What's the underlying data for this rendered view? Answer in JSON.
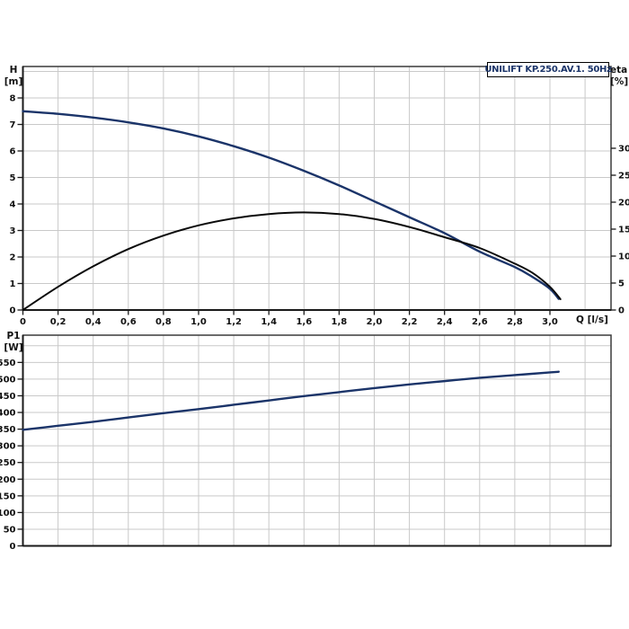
{
  "colors": {
    "background": "#ffffff",
    "grid": "#c9c9c9",
    "frame": "#3a3a3a",
    "tick": "#1a1a1a",
    "curve_navy": "#1b3469",
    "curve_black": "#0a0a0a",
    "title_text": "#1b3469"
  },
  "chart_data": [
    {
      "type": "line",
      "name": "qh-eta-chart",
      "title": "UNILIFT KP.250.AV.1. 50Hz",
      "xlabel": "Q [l/s]",
      "xlim": [
        0,
        3.35
      ],
      "grid": true,
      "x_grid": [
        0.2,
        0.4,
        0.6,
        0.8,
        1.0,
        1.2,
        1.4,
        1.6,
        1.8,
        2.0,
        2.2,
        2.4,
        2.6,
        2.8,
        3.0,
        3.2
      ],
      "x_ticks": {
        "values": [
          0,
          0.2,
          0.4,
          0.6,
          0.8,
          1.0,
          1.2,
          1.4,
          1.6,
          1.8,
          2.0,
          2.2,
          2.4,
          2.6,
          2.8,
          3.0
        ],
        "labels": [
          "0",
          "0,2",
          "0,4",
          "0,6",
          "0,8",
          "1,0",
          "1,2",
          "1,4",
          "1,6",
          "1,8",
          "2,0",
          "2,2",
          "2,4",
          "2,6",
          "2,8",
          "3,0"
        ]
      },
      "left_axis": {
        "name": "H",
        "unit": "[m]",
        "lim": [
          0,
          9.18
        ],
        "ticks": [
          0,
          1,
          2,
          3,
          4,
          5,
          6,
          7,
          8
        ],
        "tick_labels": [
          "0",
          "1",
          "2",
          "3",
          "4",
          "5",
          "6",
          "7",
          "8"
        ],
        "grid_values": [
          1,
          2,
          3,
          4,
          5,
          6,
          7,
          8,
          9
        ]
      },
      "right_axis": {
        "name": "eta",
        "unit": "[%]",
        "lim": [
          0,
          45.2
        ],
        "ticks": [
          0,
          5,
          10,
          15,
          20,
          25,
          30
        ],
        "tick_labels": [
          "0",
          "5",
          "10",
          "15",
          "20",
          "25",
          "30"
        ]
      },
      "series": [
        {
          "name": "H",
          "axis": "left",
          "color": "#1b3469",
          "points": [
            [
              0,
              7.5
            ],
            [
              0.2,
              7.4
            ],
            [
              0.4,
              7.26
            ],
            [
              0.6,
              7.08
            ],
            [
              0.8,
              6.85
            ],
            [
              1.0,
              6.55
            ],
            [
              1.2,
              6.18
            ],
            [
              1.4,
              5.75
            ],
            [
              1.6,
              5.25
            ],
            [
              1.8,
              4.7
            ],
            [
              2.0,
              4.1
            ],
            [
              2.2,
              3.5
            ],
            [
              2.4,
              2.9
            ],
            [
              2.6,
              2.2
            ],
            [
              2.8,
              1.62
            ],
            [
              2.9,
              1.25
            ],
            [
              3.0,
              0.8
            ],
            [
              3.05,
              0.42
            ]
          ]
        },
        {
          "name": "eta",
          "axis": "right",
          "color": "#0a0a0a",
          "points": [
            [
              0,
              0
            ],
            [
              0.2,
              4.3
            ],
            [
              0.4,
              8.1
            ],
            [
              0.6,
              11.3
            ],
            [
              0.8,
              13.8
            ],
            [
              1.0,
              15.7
            ],
            [
              1.2,
              17.0
            ],
            [
              1.4,
              17.8
            ],
            [
              1.6,
              18.1
            ],
            [
              1.8,
              17.8
            ],
            [
              2.0,
              16.9
            ],
            [
              2.2,
              15.4
            ],
            [
              2.4,
              13.5
            ],
            [
              2.6,
              11.5
            ],
            [
              2.8,
              8.6
            ],
            [
              2.9,
              6.9
            ],
            [
              3.0,
              4.3
            ],
            [
              3.06,
              2.0
            ]
          ]
        }
      ]
    },
    {
      "type": "line",
      "name": "p1-power-chart",
      "xlim": [
        0,
        3.35
      ],
      "grid": true,
      "x_grid": [
        0.2,
        0.4,
        0.6,
        0.8,
        1.0,
        1.2,
        1.4,
        1.6,
        1.8,
        2.0,
        2.2,
        2.4,
        2.6,
        2.8,
        3.0,
        3.2
      ],
      "left_axis": {
        "name": "P1",
        "unit": "[W]",
        "lim": [
          0,
          632
        ],
        "ticks": [
          0,
          50,
          100,
          150,
          200,
          250,
          300,
          350,
          400,
          450,
          500,
          550
        ],
        "tick_labels": [
          "0",
          "50",
          "100",
          "150",
          "200",
          "250",
          "300",
          "350",
          "400",
          "450",
          "500",
          "550"
        ],
        "grid_values": [
          50,
          100,
          150,
          200,
          250,
          300,
          350,
          400,
          450,
          500,
          550,
          600
        ]
      },
      "series": [
        {
          "name": "P1",
          "axis": "left",
          "color": "#1b3469",
          "points": [
            [
              0,
              348
            ],
            [
              0.2,
              360
            ],
            [
              0.4,
              372
            ],
            [
              0.6,
              385
            ],
            [
              0.8,
              398
            ],
            [
              1.0,
              410
            ],
            [
              1.2,
              423
            ],
            [
              1.4,
              436
            ],
            [
              1.6,
              449
            ],
            [
              1.8,
              461
            ],
            [
              2.0,
              473
            ],
            [
              2.2,
              484
            ],
            [
              2.4,
              494
            ],
            [
              2.6,
              504
            ],
            [
              2.8,
              512
            ],
            [
              3.0,
              520
            ],
            [
              3.05,
              522
            ]
          ]
        }
      ]
    }
  ]
}
